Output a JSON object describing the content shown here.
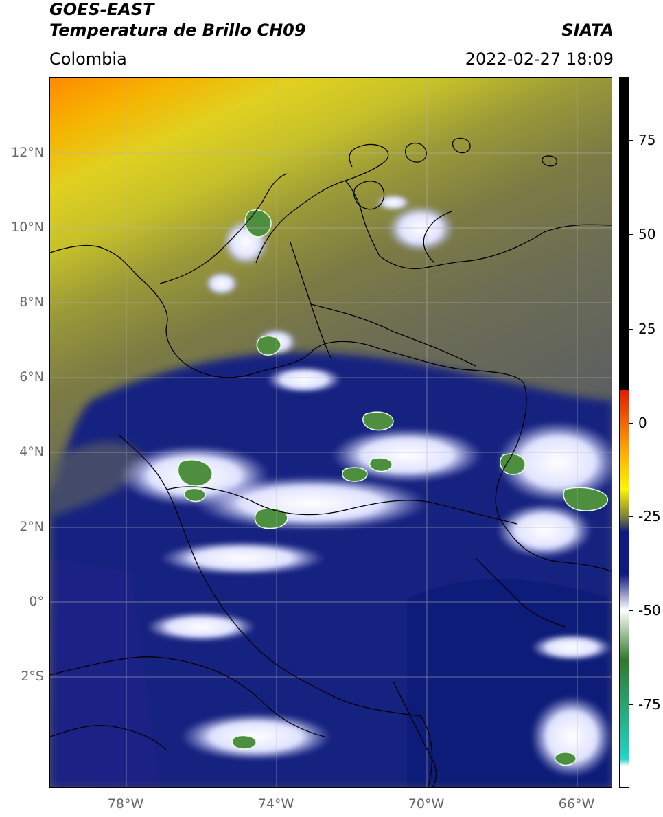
{
  "header": {
    "title_line1": "GOES-EAST",
    "title_line2": "Temperatura de Brillo CH09",
    "source": "SIATA",
    "region": "Colombia",
    "timestamp": "2022-02-27 18:09"
  },
  "map": {
    "lat_ticks": [
      "12°N",
      "10°N",
      "8°N",
      "6°N",
      "4°N",
      "2°N",
      "0°",
      "2°S"
    ],
    "lon_ticks": [
      "78°W",
      "74°W",
      "70°W",
      "66°W"
    ],
    "colors": {
      "warm_orange": "#ff9a00",
      "yellow": "#d9d21a",
      "olive": "#8f8f33",
      "gray_olive": "#6f6f52",
      "navy": "#0f1c7e",
      "white_cloud": "#eef0ff",
      "green_core": "#4a8d3e"
    }
  },
  "colorbar": {
    "ticks": [
      "75",
      "50",
      "25",
      "0",
      "-25",
      "-50",
      "-75"
    ],
    "ramp_colors": [
      "#000000",
      "#e21a00",
      "#ffb000",
      "#fff500",
      "#7a7a3a",
      "#101a85",
      "#ffffff",
      "#2f7a2a",
      "#1fd6c8",
      "#ffffff"
    ]
  }
}
